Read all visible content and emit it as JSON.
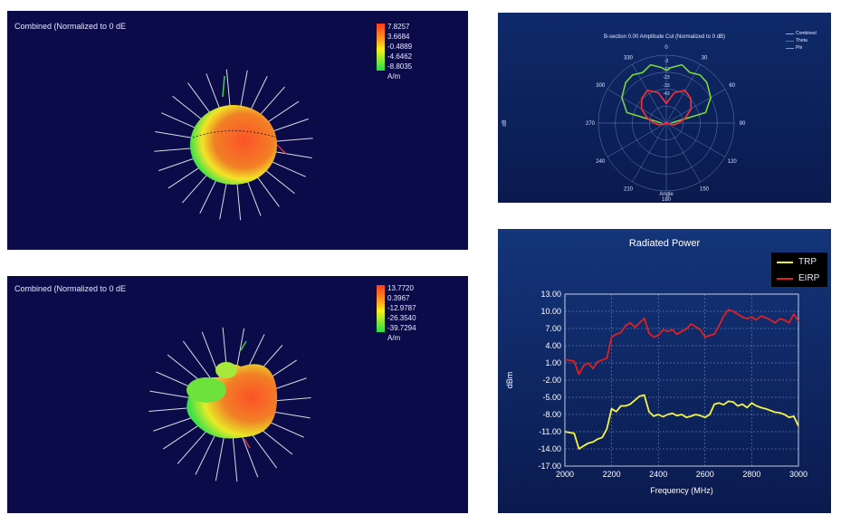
{
  "panels": {
    "top_3d": {
      "title": "Combined (Normalized to 0 dE",
      "scale_labels": [
        "7.8257",
        "3.6684",
        "-0.4889",
        "-4.6462",
        "-8.8035"
      ],
      "unit": "A/m",
      "colors": {
        "high": "#ff3b1f",
        "mid": "#f7f01a",
        "low": "#22e04a"
      }
    },
    "bottom_3d": {
      "title": "Combined (Normalized to 0 dE",
      "scale_labels": [
        "13.7720",
        "0.3967",
        "-12.9787",
        "-26.3540",
        "-39.7294"
      ],
      "unit": "A/m",
      "colors": {
        "high": "#ff3b1f",
        "mid": "#f7f01a",
        "low": "#22e04a"
      }
    }
  },
  "chart_data": [
    {
      "type": "line",
      "chart": "polar",
      "title": "B-section 0.00 Amplitude Cut (Normalized to 0 dB)",
      "xlabel": "Angle",
      "ylabel": "dB",
      "angle_ticks": [
        "0",
        "30",
        "60",
        "90",
        "120",
        "150",
        "180",
        "210",
        "240",
        "270",
        "300",
        "330"
      ],
      "radial_ticks": [
        "-3",
        "-13",
        "-23",
        "-33",
        "-43"
      ],
      "rlim": [
        -43,
        2
      ],
      "legend": [
        {
          "name": "Combined",
          "color": "#9aa0ff"
        },
        {
          "name": "Theta",
          "color": "#ff3030"
        },
        {
          "name": "Phi",
          "color": "#8888ff"
        }
      ],
      "series": [
        {
          "name": "Combined",
          "color": "#7ad63a",
          "theta": [
            270,
            285,
            300,
            315,
            325,
            335,
            345,
            355,
            0,
            5,
            15,
            25,
            35,
            45,
            60,
            75,
            90
          ],
          "r": [
            -40,
            -16,
            -9,
            -5,
            -4,
            -6,
            -3,
            -6,
            -8,
            -6,
            -3,
            -6,
            -4,
            -5,
            -9,
            -16,
            -40
          ]
        },
        {
          "name": "Theta",
          "color": "#ff3030",
          "theta": [
            240,
            255,
            270,
            285,
            300,
            315,
            330,
            345,
            360,
            375,
            390,
            405,
            420,
            435,
            450,
            465,
            480
          ],
          "r": [
            -43,
            -38,
            -35,
            -30,
            -24,
            -20,
            -18,
            -22,
            -30,
            -22,
            -18,
            -20,
            -24,
            -30,
            -35,
            -38,
            -43
          ]
        }
      ]
    },
    {
      "type": "line",
      "title": "Radiated Power",
      "xlabel": "Frequency (MHz)",
      "ylabel": "dBm",
      "xlim": [
        2000,
        3000
      ],
      "ylim": [
        -17,
        13
      ],
      "x_ticks": [
        2000,
        2200,
        2400,
        2600,
        2800,
        3000
      ],
      "y_ticks": [
        "13.00",
        "10.00",
        "7.00",
        "4.00",
        "1.00",
        "-2.00",
        "-5.00",
        "-8.00",
        "-11.00",
        "-14.00",
        "-17.00"
      ],
      "grid": true,
      "legend_position": "top-right",
      "x": [
        2000,
        2040,
        2060,
        2080,
        2100,
        2120,
        2140,
        2160,
        2180,
        2200,
        2220,
        2240,
        2260,
        2280,
        2300,
        2320,
        2340,
        2360,
        2380,
        2400,
        2420,
        2440,
        2460,
        2480,
        2500,
        2520,
        2540,
        2560,
        2580,
        2600,
        2620,
        2640,
        2660,
        2680,
        2700,
        2720,
        2740,
        2760,
        2780,
        2800,
        2820,
        2840,
        2860,
        2880,
        2900,
        2920,
        2940,
        2960,
        2980,
        3000
      ],
      "series": [
        {
          "name": "TRP",
          "color": "#f5f542",
          "values": [
            -11.0,
            -11.3,
            -14.0,
            -13.5,
            -13.0,
            -12.8,
            -12.3,
            -12.0,
            -10.5,
            -7.0,
            -7.5,
            -6.5,
            -6.5,
            -6.2,
            -5.5,
            -4.8,
            -4.6,
            -7.5,
            -8.3,
            -8.0,
            -8.4,
            -8.0,
            -7.8,
            -8.2,
            -8.0,
            -8.5,
            -8.3,
            -8.0,
            -8.2,
            -8.5,
            -8.0,
            -6.2,
            -6.0,
            -6.3,
            -5.7,
            -5.8,
            -6.5,
            -6.2,
            -6.8,
            -6.0,
            -6.5,
            -6.8,
            -7.0,
            -7.3,
            -7.6,
            -7.7,
            -8.0,
            -8.5,
            -8.3,
            -10.0
          ]
        },
        {
          "name": "EIRP",
          "color": "#e02020",
          "values": [
            1.6,
            1.3,
            -1.0,
            0.5,
            1.0,
            0.0,
            1.2,
            1.5,
            1.8,
            5.5,
            6.0,
            6.3,
            7.5,
            8.0,
            7.2,
            8.0,
            8.8,
            6.2,
            5.5,
            5.8,
            6.8,
            6.5,
            6.8,
            6.0,
            6.5,
            6.9,
            7.8,
            7.3,
            6.8,
            5.5,
            5.8,
            6.0,
            7.5,
            9.2,
            10.3,
            10.0,
            9.5,
            9.0,
            8.7,
            9.0,
            8.5,
            9.2,
            8.9,
            8.5,
            8.0,
            8.7,
            8.5,
            8.0,
            9.5,
            8.3
          ]
        }
      ]
    }
  ]
}
